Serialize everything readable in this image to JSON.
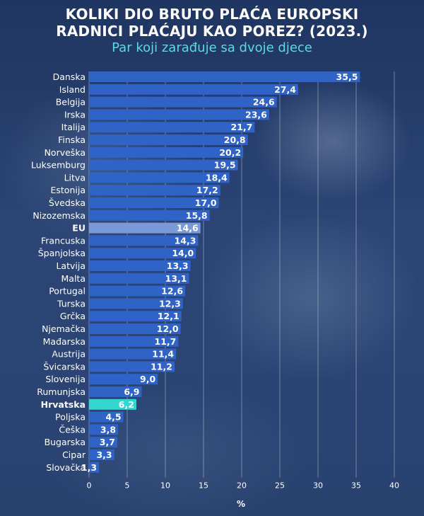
{
  "chart_data": {
    "type": "bar",
    "orientation": "horizontal",
    "title": "KOLIKI DIO BRUTO PLAĆA EUROPSKI\nRADNICI PLAĆAJU KAO POREZ? (2023.)",
    "subtitle": "Par koji zarađuje sa dvoje djece",
    "xlabel": "%",
    "ylabel": "",
    "xlim": [
      0,
      40
    ],
    "xticks": [
      0,
      5,
      10,
      15,
      20,
      25,
      30,
      35,
      40
    ],
    "grid": true,
    "categories": [
      "Danska",
      "Island",
      "Belgija",
      "Irska",
      "Italija",
      "Finska",
      "Norveška",
      "Luksemburg",
      "Litva",
      "Estonija",
      "Švedska",
      "Nizozemska",
      "EU",
      "Francuska",
      "Španjolska",
      "Latvija",
      "Malta",
      "Portugal",
      "Turska",
      "Grčka",
      "Njemačka",
      "Mađarska",
      "Austrija",
      "Švicarska",
      "Slovenija",
      "Rumunjska",
      "Hrvatska",
      "Poljska",
      "Češka",
      "Bugarska",
      "Cipar",
      "Slovačka"
    ],
    "values": [
      35.5,
      27.4,
      24.6,
      23.6,
      21.7,
      20.8,
      20.2,
      19.5,
      18.4,
      17.2,
      17.0,
      15.8,
      14.6,
      14.3,
      14.0,
      13.3,
      13.1,
      12.6,
      12.3,
      12.1,
      12.0,
      11.7,
      11.4,
      11.2,
      9.0,
      6.9,
      6.2,
      4.5,
      3.8,
      3.7,
      3.3,
      1.3
    ],
    "value_labels": [
      "35,5",
      "27,4",
      "24,6",
      "23,6",
      "21,7",
      "20,8",
      "20,2",
      "19,5",
      "18,4",
      "17,2",
      "17,0",
      "15,8",
      "14,6",
      "14,3",
      "14,0",
      "13,3",
      "13,1",
      "12,6",
      "12,3",
      "12,1",
      "12,0",
      "11,7",
      "11,4",
      "11,2",
      "9,0",
      "6,9",
      "6,2",
      "4,5",
      "3,8",
      "3,7",
      "3,3",
      "1,3"
    ],
    "highlights": {
      "EU": "eu",
      "Hrvatska": "hr"
    },
    "colors": {
      "bar": "#2f63c8",
      "bar_eu": "#7a9ad6",
      "bar_hr": "#34d6d0",
      "label_hr": "#34d6d0",
      "value_hr": "#1e4f9c",
      "grid": "#ffffff"
    }
  }
}
